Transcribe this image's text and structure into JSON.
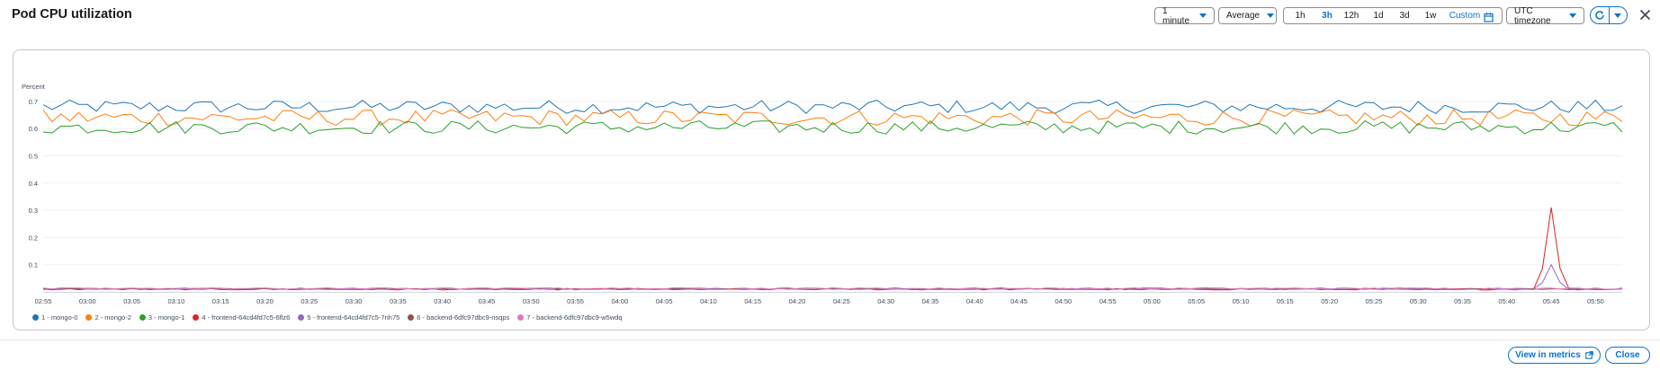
{
  "title": "Pod CPU utilization",
  "controls": {
    "period": "1 minute",
    "statistic": "Average",
    "ranges": [
      "1h",
      "3h",
      "12h",
      "1d",
      "3d",
      "1w",
      "Custom"
    ],
    "active_range": "3h",
    "timezone": "UTC timezone"
  },
  "buttons": {
    "view_in_metrics": "View in metrics",
    "close": "Close"
  },
  "colors": {
    "accent": "#0972d3"
  },
  "icons": [
    "calendar-icon",
    "refresh-icon",
    "caret-down-icon",
    "close-icon",
    "external-link-icon"
  ],
  "chart_data": {
    "type": "line",
    "ylabel": "Percent",
    "ylim": [
      0,
      0.74
    ],
    "yticks": [
      "0.1",
      "0.2",
      "0.3",
      "0.4",
      "0.5",
      "0.6",
      "0.7"
    ],
    "xticks": [
      "02:55",
      "03:00",
      "03:05",
      "03:10",
      "03:15",
      "03:20",
      "03:25",
      "03:30",
      "03:35",
      "03:40",
      "03:45",
      "03:50",
      "03:55",
      "04:00",
      "04:05",
      "04:10",
      "04:15",
      "04:20",
      "04:25",
      "04:30",
      "04:35",
      "04:40",
      "04:45",
      "04:50",
      "04:55",
      "05:00",
      "05:05",
      "05:10",
      "05:15",
      "05:20",
      "05:25",
      "05:30",
      "05:35",
      "05:40",
      "05:45",
      "05:50"
    ],
    "x_start": "02:55",
    "x_end": "05:53",
    "grid": "horizontal",
    "legend_position": "bottom-left",
    "series": [
      {
        "name": "1 - mongo-0",
        "color": "#1f77b4",
        "base": 0.68,
        "amp": 0.025
      },
      {
        "name": "2 - mongo-2",
        "color": "#ff7f0e",
        "base": 0.64,
        "amp": 0.03
      },
      {
        "name": "3 - mongo-1",
        "color": "#2ca02c",
        "base": 0.605,
        "amp": 0.025
      },
      {
        "name": "4 - frontend-64cd4fd7c5-6flz6",
        "color": "#d62728",
        "base": 0.01,
        "amp": 0.003,
        "spike": {
          "x": "05:45",
          "value": 0.31
        }
      },
      {
        "name": "5 - frontend-64cd4fd7c5-7nh75",
        "color": "#9467bd",
        "base": 0.012,
        "amp": 0.003,
        "spike": {
          "x": "05:45",
          "value": 0.1
        }
      },
      {
        "name": "6 - backend-6dfc97dbc9-nsqps",
        "color": "#8c564b",
        "base": 0.01,
        "amp": 0.002
      },
      {
        "name": "7 - backend-6dfc97dbc9-w5wdq",
        "color": "#e377c2",
        "base": 0.012,
        "amp": 0.003
      }
    ]
  }
}
